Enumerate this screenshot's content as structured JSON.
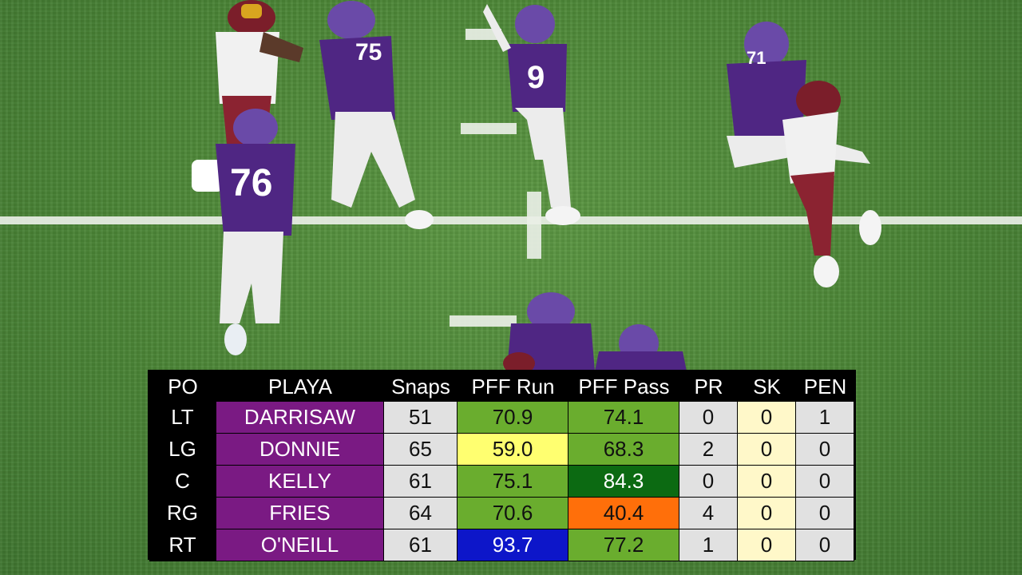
{
  "colors": {
    "field": "#4f8a3a",
    "name_cell": "#7a1a83",
    "grade_green": "#6aad2e",
    "grade_dark_green": "#0c6a12",
    "grade_yellow": "#ffff70",
    "grade_orange": "#ff6f0a",
    "grade_blue": "#0d16c9",
    "neutral_gray": "#e1e1e1",
    "pale_yellow": "#fff8c9",
    "vikings_purple": "#4f2683",
    "commanders_burgundy": "#7b1e2a"
  },
  "jerseys": [
    "76",
    "9",
    "75",
    "71"
  ],
  "table": {
    "headers": [
      "PO",
      "PLAYA",
      "Snaps",
      "PFF Run",
      "PFF Pass",
      "PR",
      "SK",
      "PEN"
    ],
    "rows": [
      {
        "po": "LT",
        "playa": "DARRISAW",
        "snaps": "51",
        "run": "70.9",
        "pass": "74.1",
        "pr": "0",
        "sk": "0",
        "pen": "1"
      },
      {
        "po": "LG",
        "playa": "DONNIE",
        "snaps": "65",
        "run": "59.0",
        "pass": "68.3",
        "pr": "2",
        "sk": "0",
        "pen": "0"
      },
      {
        "po": "C",
        "playa": "KELLY",
        "snaps": "61",
        "run": "75.1",
        "pass": "84.3",
        "pr": "0",
        "sk": "0",
        "pen": "0"
      },
      {
        "po": "RG",
        "playa": "FRIES",
        "snaps": "64",
        "run": "70.6",
        "pass": "40.4",
        "pr": "4",
        "sk": "0",
        "pen": "0"
      },
      {
        "po": "RT",
        "playa": "O'NEILL",
        "snaps": "61",
        "run": "93.7",
        "pass": "77.2",
        "pr": "1",
        "sk": "0",
        "pen": "0"
      }
    ],
    "run_colors": [
      "#6aad2e",
      "#ffff70",
      "#6aad2e",
      "#6aad2e",
      "#0d16c9"
    ],
    "pass_colors": [
      "#6aad2e",
      "#6aad2e",
      "#0c6a12",
      "#ff6f0a",
      "#6aad2e"
    ],
    "run_text_colors": [
      "#111111",
      "#111111",
      "#111111",
      "#111111",
      "#ffffff"
    ],
    "pass_text_colors": [
      "#111111",
      "#111111",
      "#ffffff",
      "#111111",
      "#111111"
    ]
  }
}
